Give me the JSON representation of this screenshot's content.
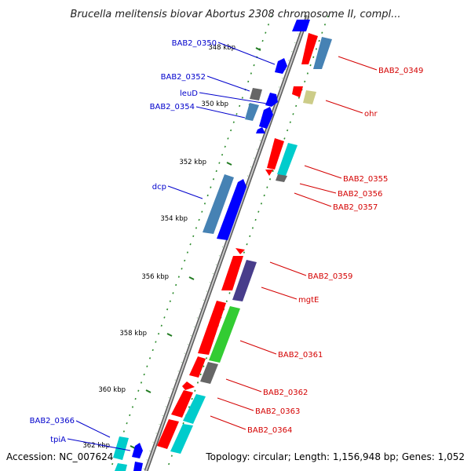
{
  "title": "Brucella melitensis biovar Abortus 2308 chromosome II, compl...",
  "footer": {
    "accession": "Accession: NC_007624",
    "summary": "Topology: circular; Length: 1,156,948 bp; Genes: 1,052"
  },
  "colors": {
    "backbone": "#8c8c8c",
    "tick": "#1f7a1f",
    "forward_label": "#d40000",
    "reverse_label": "#0000cc",
    "red_gene": "#ff0000",
    "blue_gene": "#0000ff",
    "steelblue_gene": "#4682b4",
    "cyan_gene": "#00cccc",
    "gray_gene": "#666666",
    "khaki_gene": "#cccc88",
    "darkslate_gene": "#483d8b",
    "green_gene": "#33cc33"
  },
  "ticks": [
    "348 kbp",
    "350 kbp",
    "352 kbp",
    "354 kbp",
    "356 kbp",
    "358 kbp",
    "360 kbp",
    "362 kbp"
  ],
  "labels_left": [
    "BAB2_0350",
    "BAB2_0352",
    "leuD",
    "BAB2_0354",
    "dcp",
    "BAB2_0366",
    "tpiA"
  ],
  "labels_right": [
    "BAB2_0349",
    "ohr",
    "BAB2_0355",
    "BAB2_0356",
    "BAB2_0357",
    "BAB2_0359",
    "mgtE",
    "BAB2_0361",
    "BAB2_0362",
    "BAB2_0363",
    "BAB2_0364"
  ]
}
